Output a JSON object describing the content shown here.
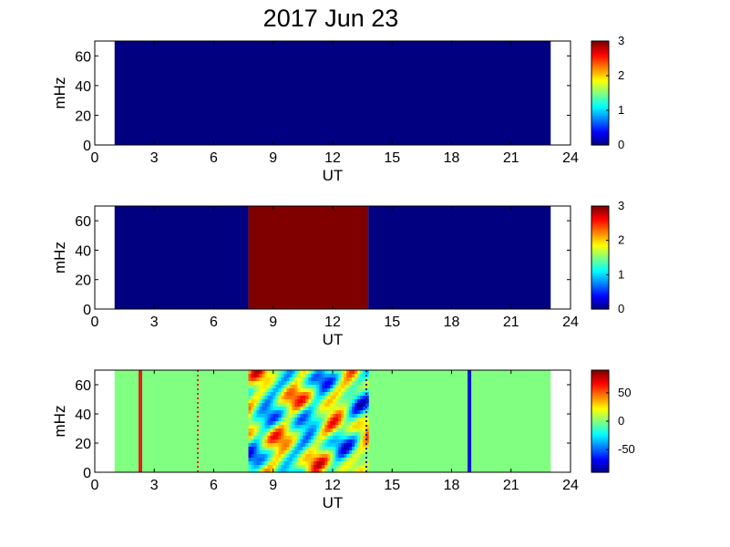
{
  "title": "2017 Jun 23",
  "colors": {
    "background": "#ffffff",
    "low": "#00008f",
    "high": "#800000",
    "mid": "#8fff70",
    "axis": "#000000"
  },
  "chart_data": [
    {
      "type": "heatmap",
      "xlabel": "UT",
      "ylabel": "mHz",
      "xlim": [
        0,
        24
      ],
      "ylim": [
        0,
        70
      ],
      "xticks": [
        "0",
        "3",
        "6",
        "9",
        "12",
        "15",
        "18",
        "21",
        "24"
      ],
      "yticks": [
        "0",
        "20",
        "40",
        "60"
      ],
      "data_extent_ut": [
        1,
        23
      ],
      "colormap": "jet",
      "segments": [
        {
          "start": 1,
          "end": 23,
          "value": 0
        }
      ],
      "colorbar": {
        "range": [
          0,
          3
        ],
        "ticks": [
          "0",
          "1",
          "2",
          "3"
        ]
      }
    },
    {
      "type": "heatmap",
      "xlabel": "UT",
      "ylabel": "mHz",
      "xlim": [
        0,
        24
      ],
      "ylim": [
        0,
        70
      ],
      "xticks": [
        "0",
        "3",
        "6",
        "9",
        "12",
        "15",
        "18",
        "21",
        "24"
      ],
      "yticks": [
        "0",
        "20",
        "40",
        "60"
      ],
      "data_extent_ut": [
        1,
        23
      ],
      "colormap": "jet",
      "segments": [
        {
          "start": 1,
          "end": 7.75,
          "value": 0
        },
        {
          "start": 7.75,
          "end": 13.8,
          "value": 3
        },
        {
          "start": 13.8,
          "end": 23,
          "value": 0
        }
      ],
      "colorbar": {
        "range": [
          0,
          3
        ],
        "ticks": [
          "0",
          "1",
          "2",
          "3"
        ]
      }
    },
    {
      "type": "heatmap",
      "xlabel": "UT",
      "ylabel": "mHz",
      "xlim": [
        0,
        24
      ],
      "ylim": [
        0,
        70
      ],
      "xticks": [
        "0",
        "3",
        "6",
        "9",
        "12",
        "15",
        "18",
        "21",
        "24"
      ],
      "yticks": [
        "0",
        "20",
        "40",
        "60"
      ],
      "data_extent_ut": [
        1,
        23
      ],
      "colormap": "jet",
      "background_value": 0,
      "active_interval": [
        7.75,
        13.8
      ],
      "lines": [
        {
          "ut": 2.3,
          "color": "#e02020",
          "style": "solid"
        },
        {
          "ut": 5.2,
          "color": "#e02020",
          "style": "dotted"
        },
        {
          "ut": 13.7,
          "color": "#1a1a8f",
          "style": "dotted"
        },
        {
          "ut": 18.9,
          "color": "#0018d0",
          "style": "solid"
        }
      ],
      "colorbar": {
        "range": [
          -90,
          90
        ],
        "ticks": [
          "50",
          "0",
          "-50"
        ],
        "tick_values": [
          50,
          0,
          -50
        ]
      }
    }
  ]
}
